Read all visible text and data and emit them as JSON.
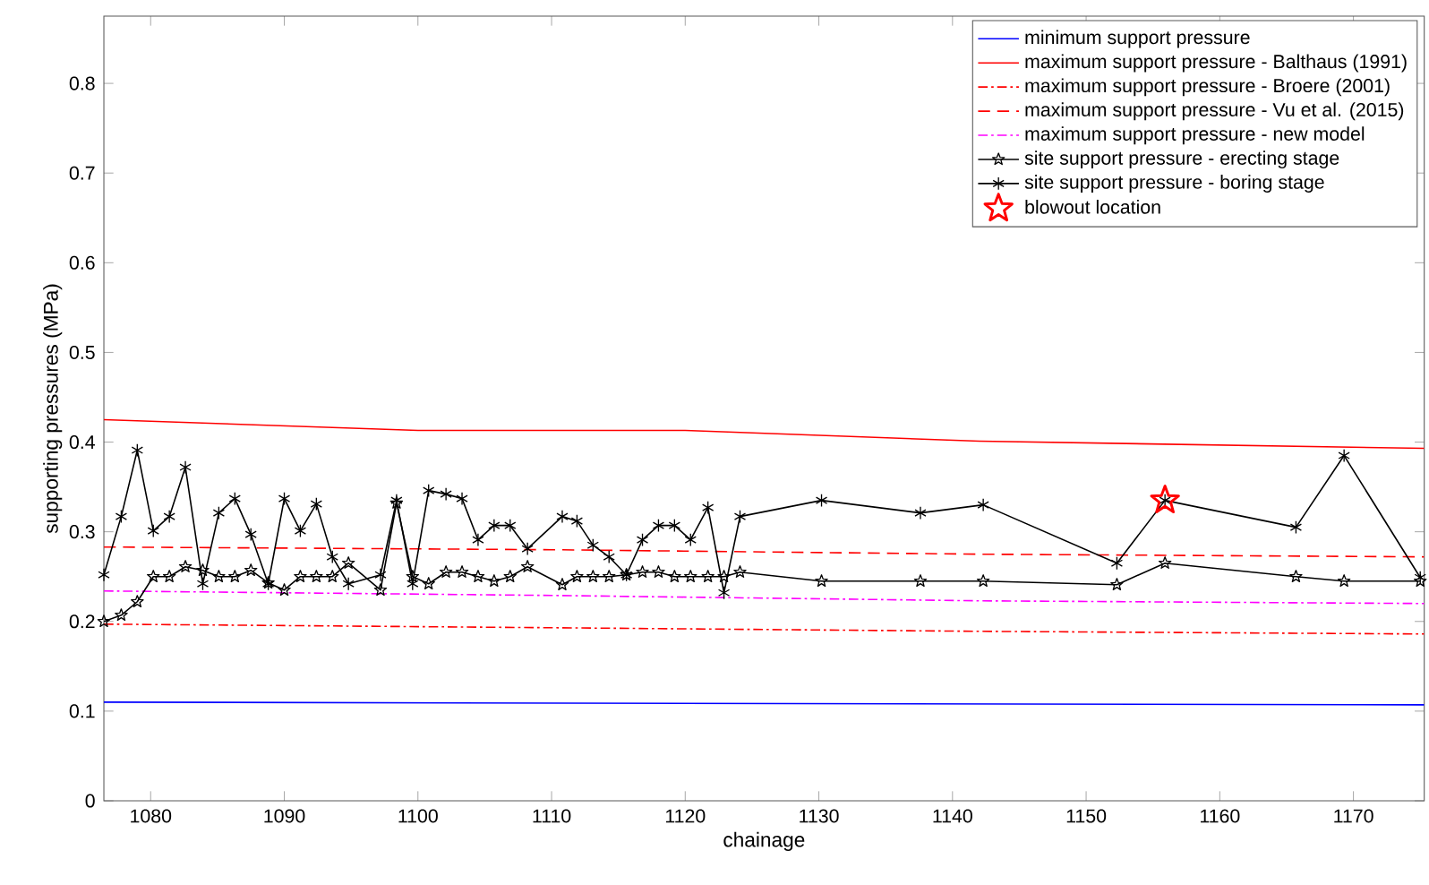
{
  "chart_data": {
    "type": "line",
    "xlabel": "chainage",
    "ylabel": "supporting pressures (MPa)",
    "xlim": [
      1076.5,
      1175.3
    ],
    "ylim": [
      0,
      0.875
    ],
    "xticks": [
      1080,
      1090,
      1100,
      1110,
      1120,
      1130,
      1140,
      1150,
      1160,
      1170
    ],
    "yticks": [
      0,
      0.1,
      0.2,
      0.3,
      0.4,
      0.5,
      0.6,
      0.7,
      0.8
    ],
    "legend": "top right",
    "series": [
      {
        "name": "minimum support pressure",
        "color": "#0000ff",
        "line_style": "solid",
        "marker": "none",
        "x": [
          1076.5,
          1175.3
        ],
        "values": [
          0.11,
          0.107
        ]
      },
      {
        "name": "maximum support pressure - Balthaus (1991)",
        "color": "#ff0000",
        "line_style": "solid",
        "marker": "none",
        "x": [
          1076.5,
          1100,
          1120,
          1142,
          1175.3
        ],
        "values": [
          0.425,
          0.413,
          0.413,
          0.401,
          0.393
        ]
      },
      {
        "name": "maximum support pressure - Broere (2001)",
        "color": "#ff0000",
        "line_style": "dashdot",
        "marker": "none",
        "x": [
          1076.5,
          1110,
          1142,
          1175.3
        ],
        "values": [
          0.197,
          0.193,
          0.189,
          0.186
        ]
      },
      {
        "name": "maximum support pressure - Vu et al. (2015)",
        "color": "#ff0000",
        "line_style": "dashed",
        "marker": "none",
        "x": [
          1076.5,
          1110,
          1142,
          1175.3
        ],
        "values": [
          0.283,
          0.28,
          0.275,
          0.272
        ]
      },
      {
        "name": "maximum support pressure - new model",
        "color": "#ff00ff",
        "line_style": "dashdot",
        "marker": "none",
        "x": [
          1076.5,
          1110,
          1142,
          1175.3
        ],
        "values": [
          0.234,
          0.229,
          0.223,
          0.22
        ]
      },
      {
        "name": "site support pressure - erecting stage",
        "color": "#000000",
        "line_style": "solid",
        "marker": "star",
        "x": [
          1076.5,
          1077.8,
          1079.0,
          1080.2,
          1081.4,
          1082.6,
          1083.9,
          1085.1,
          1086.3,
          1087.5,
          1088.8,
          1090.0,
          1091.2,
          1092.4,
          1093.6,
          1094.8,
          1097.2,
          1098.4,
          1099.6,
          1100.8,
          1102.1,
          1103.3,
          1104.5,
          1105.7,
          1106.9,
          1108.2,
          1110.8,
          1111.9,
          1113.1,
          1114.3,
          1115.6,
          1116.8,
          1118.0,
          1119.2,
          1120.4,
          1121.7,
          1122.9,
          1124.1,
          1130.2,
          1137.6,
          1142.3,
          1152.3,
          1155.9,
          1165.7,
          1169.3,
          1175.0
        ],
        "values": [
          0.2,
          0.207,
          0.222,
          0.25,
          0.25,
          0.261,
          0.257,
          0.25,
          0.25,
          0.257,
          0.243,
          0.235,
          0.25,
          0.25,
          0.25,
          0.265,
          0.235,
          0.332,
          0.25,
          0.242,
          0.255,
          0.255,
          0.25,
          0.245,
          0.25,
          0.261,
          0.241,
          0.25,
          0.25,
          0.25,
          0.252,
          0.255,
          0.255,
          0.25,
          0.25,
          0.25,
          0.25,
          0.255,
          0.245,
          0.245,
          0.245,
          0.241,
          0.265,
          0.25,
          0.245,
          0.245
        ]
      },
      {
        "name": "site support pressure - boring stage",
        "color": "#000000",
        "line_style": "solid",
        "marker": "cross",
        "x": [
          1076.5,
          1077.8,
          1079.0,
          1080.2,
          1081.4,
          1082.6,
          1083.9,
          1085.1,
          1086.3,
          1087.5,
          1088.8,
          1090.0,
          1091.2,
          1092.4,
          1093.6,
          1094.8,
          1097.2,
          1098.4,
          1099.6,
          1100.8,
          1102.1,
          1103.3,
          1104.5,
          1105.7,
          1106.9,
          1108.2,
          1110.8,
          1111.9,
          1113.1,
          1114.3,
          1115.6,
          1116.8,
          1118.0,
          1119.2,
          1120.4,
          1121.7,
          1122.9,
          1124.1,
          1130.2,
          1137.6,
          1142.3,
          1152.3,
          1155.9,
          1165.7,
          1169.3,
          1175.0
        ],
        "values": [
          0.252,
          0.317,
          0.391,
          0.301,
          0.317,
          0.372,
          0.242,
          0.321,
          0.337,
          0.297,
          0.242,
          0.337,
          0.301,
          0.331,
          0.272,
          0.242,
          0.252,
          0.335,
          0.242,
          0.346,
          0.342,
          0.337,
          0.291,
          0.307,
          0.307,
          0.281,
          0.317,
          0.312,
          0.285,
          0.272,
          0.252,
          0.291,
          0.307,
          0.307,
          0.291,
          0.327,
          0.232,
          0.317,
          0.335,
          0.321,
          0.33,
          0.265,
          0.335,
          0.305,
          0.385,
          0.249
        ]
      },
      {
        "name": "blowout location",
        "type": "scatter",
        "color": "#ff0000",
        "marker": "star",
        "x": [
          1155.9
        ],
        "values": [
          0.335
        ]
      }
    ]
  }
}
